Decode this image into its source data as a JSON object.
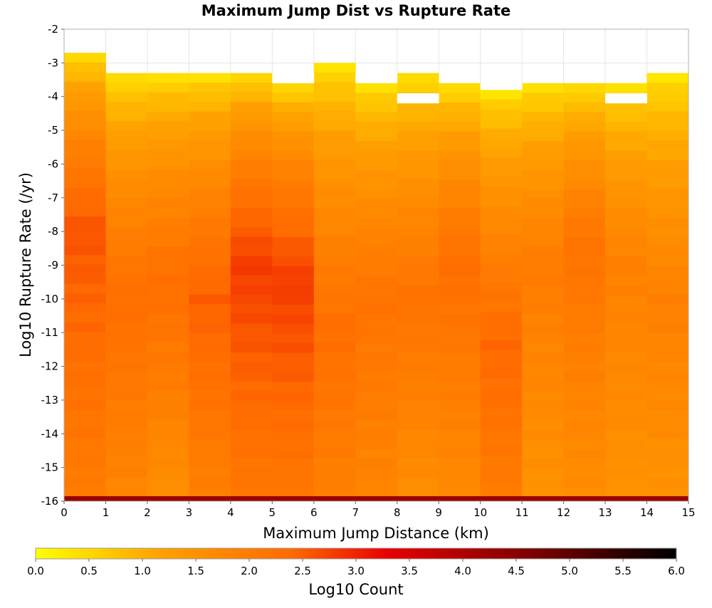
{
  "chart_data": {
    "type": "heatmap",
    "title": "Maximum Jump Dist vs Rupture Rate",
    "xlabel": "Maximum Jump Distance (km)",
    "ylabel": "Log10 Rupture Rate (/yr)",
    "colorbar_label": "Log10 Count",
    "xlim": [
      0,
      15
    ],
    "ylim": [
      -16,
      -2
    ],
    "x_ticks": [
      "0",
      "1",
      "2",
      "3",
      "4",
      "5",
      "6",
      "7",
      "8",
      "9",
      "10",
      "11",
      "12",
      "13",
      "14",
      "15"
    ],
    "y_ticks": [
      "-2",
      "-3",
      "-4",
      "-5",
      "-6",
      "-7",
      "-8",
      "-9",
      "-10",
      "-11",
      "-12",
      "-13",
      "-14",
      "-15",
      "-16"
    ],
    "colorbar_range": [
      0,
      6
    ],
    "colorbar_ticks": [
      "0.0",
      "0.5",
      "1.0",
      "1.5",
      "2.0",
      "2.5",
      "3.0",
      "3.5",
      "4.0",
      "4.5",
      "5.0",
      "5.5",
      "6.0"
    ],
    "colormap": [
      "#ffff00",
      "#ff9f00",
      "#ff6a00",
      "#e80000",
      "#7a0000",
      "#000000"
    ],
    "x_bin_width_km": 1,
    "y_bin_height_log10": 0.2857,
    "grid": true,
    "colorbar_orientation": "horizontal",
    "bottom_row_log10_count": 4.3,
    "columns": [
      {
        "x": 0.5,
        "y_top": -2.7,
        "low": 2.0,
        "mid_rate": -8.0,
        "peak": 2.6
      },
      {
        "x": 1.5,
        "y_top": -3.3,
        "low": 1.8,
        "mid_rate": -10.0,
        "peak": 2.3
      },
      {
        "x": 2.5,
        "y_top": -3.3,
        "low": 1.6,
        "mid_rate": -9.5,
        "peak": 2.3
      },
      {
        "x": 3.5,
        "y_top": -3.3,
        "low": 1.9,
        "mid_rate": -10.0,
        "peak": 2.5
      },
      {
        "x": 4.5,
        "y_top": -3.3,
        "low": 2.1,
        "mid_rate": -9.0,
        "peak": 2.8
      },
      {
        "x": 5.5,
        "y_top": -3.6,
        "low": 2.1,
        "mid_rate": -9.5,
        "peak": 2.8
      },
      {
        "x": 6.5,
        "y_top": -3.0,
        "low": 1.9,
        "mid_rate": -11.0,
        "peak": 2.3
      },
      {
        "x": 7.5,
        "y_top": -3.6,
        "low": 1.8,
        "mid_rate": -10.0,
        "peak": 2.2
      },
      {
        "x": 8.5,
        "y_top": -3.3,
        "low": 1.6,
        "mid_rate": -10.0,
        "peak": 2.2
      },
      {
        "x": 9.5,
        "y_top": -3.6,
        "low": 1.7,
        "mid_rate": -9.0,
        "peak": 2.3
      },
      {
        "x": 10.5,
        "y_top": -3.8,
        "low": 2.0,
        "mid_rate": -11.5,
        "peak": 2.4
      },
      {
        "x": 11.5,
        "y_top": -3.6,
        "low": 1.5,
        "mid_rate": -9.0,
        "peak": 2.0
      },
      {
        "x": 12.5,
        "y_top": -3.6,
        "low": 1.6,
        "mid_rate": -8.5,
        "peak": 2.2
      },
      {
        "x": 13.5,
        "y_top": -3.6,
        "low": 1.5,
        "mid_rate": -9.0,
        "peak": 1.9
      },
      {
        "x": 14.5,
        "y_top": -3.3,
        "low": 1.5,
        "mid_rate": -10.0,
        "peak": 1.9
      }
    ],
    "missing_cells": [
      {
        "x": 5.5,
        "y_top": -3.3,
        "y_bottom": -3.6
      },
      {
        "x": 7.5,
        "y_top": -3.3,
        "y_bottom": -3.6
      },
      {
        "x": 8.5,
        "y_top": -3.9,
        "y_bottom": -4.2
      },
      {
        "x": 10.5,
        "y_top": -3.6,
        "y_bottom": -3.8
      },
      {
        "x": 13.5,
        "y_top": -3.9,
        "y_bottom": -4.2
      }
    ]
  }
}
